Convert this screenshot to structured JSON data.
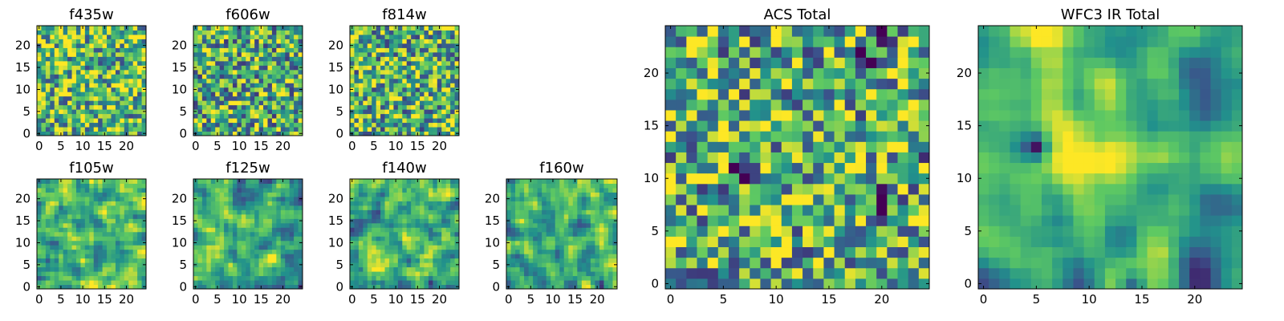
{
  "figure": {
    "colormap": "viridis",
    "colormap_stops": [
      "#440154",
      "#3b528b",
      "#21918c",
      "#5ec962",
      "#fde725"
    ]
  },
  "chart_data": [
    {
      "type": "heatmap",
      "title": "f435w",
      "grid": [
        25,
        25
      ],
      "xlim": [
        0,
        24
      ],
      "ylim": [
        0,
        24
      ],
      "xticks": [
        0,
        5,
        10,
        15,
        20
      ],
      "yticks": [
        0,
        5,
        10,
        15,
        20
      ],
      "seed": 11,
      "smooth": 0,
      "mean": 0.68,
      "blobs": []
    },
    {
      "type": "heatmap",
      "title": "f606w",
      "grid": [
        25,
        25
      ],
      "xlim": [
        0,
        24
      ],
      "ylim": [
        0,
        24
      ],
      "xticks": [
        0,
        5,
        10,
        15,
        20
      ],
      "yticks": [
        0,
        5,
        10,
        15,
        20
      ],
      "seed": 23,
      "smooth": 0,
      "mean": 0.62,
      "blobs": []
    },
    {
      "type": "heatmap",
      "title": "f814w",
      "grid": [
        25,
        25
      ],
      "xlim": [
        0,
        24
      ],
      "ylim": [
        0,
        24
      ],
      "xticks": [
        0,
        5,
        10,
        15,
        20
      ],
      "yticks": [
        0,
        5,
        10,
        15,
        20
      ],
      "seed": 37,
      "smooth": 0,
      "mean": 0.64,
      "blobs": []
    },
    {
      "type": "heatmap",
      "title": "f105w",
      "grid": [
        25,
        25
      ],
      "xlim": [
        0,
        24
      ],
      "ylim": [
        0,
        24
      ],
      "xticks": [
        0,
        5,
        10,
        15,
        20
      ],
      "yticks": [
        0,
        5,
        10,
        15,
        20
      ],
      "seed": 41,
      "smooth": 1,
      "mean": 0.72,
      "blobs": [
        [
          22,
          16,
          0.3
        ],
        [
          4,
          10,
          0.35
        ]
      ]
    },
    {
      "type": "heatmap",
      "title": "f125w",
      "grid": [
        25,
        25
      ],
      "xlim": [
        0,
        24
      ],
      "ylim": [
        0,
        24
      ],
      "xticks": [
        0,
        5,
        10,
        15,
        20
      ],
      "yticks": [
        0,
        5,
        10,
        15,
        20
      ],
      "seed": 53,
      "smooth": 1,
      "mean": 0.58,
      "blobs": []
    },
    {
      "type": "heatmap",
      "title": "f140w",
      "grid": [
        25,
        25
      ],
      "xlim": [
        0,
        24
      ],
      "ylim": [
        0,
        24
      ],
      "xticks": [
        0,
        5,
        10,
        15,
        20
      ],
      "yticks": [
        0,
        5,
        10,
        15,
        20
      ],
      "seed": 67,
      "smooth": 1,
      "mean": 0.62,
      "blobs": []
    },
    {
      "type": "heatmap",
      "title": "f160w",
      "grid": [
        25,
        25
      ],
      "xlim": [
        0,
        24
      ],
      "ylim": [
        0,
        24
      ],
      "xticks": [
        0,
        5,
        10,
        15,
        20
      ],
      "yticks": [
        0,
        5,
        10,
        15,
        20
      ],
      "seed": 79,
      "smooth": 1,
      "mean": 0.6,
      "blobs": []
    },
    {
      "type": "heatmap",
      "title": "ACS Total",
      "grid": [
        25,
        25
      ],
      "xlim": [
        0,
        24
      ],
      "ylim": [
        0,
        24
      ],
      "xticks": [
        0,
        5,
        10,
        15,
        20
      ],
      "yticks": [
        0,
        5,
        10,
        15,
        20
      ],
      "seed": 97,
      "smooth": 0,
      "mean": 0.62,
      "blobs": [
        [
          20,
          8,
          0.6
        ],
        [
          18,
          21,
          0.6
        ],
        [
          7,
          11,
          0.5
        ],
        [
          24,
          13,
          0.5
        ],
        [
          20,
          24,
          0.5
        ]
      ]
    },
    {
      "type": "heatmap",
      "title": "WFC3 IR Total",
      "grid": [
        25,
        25
      ],
      "xlim": [
        0,
        24
      ],
      "ylim": [
        0,
        24
      ],
      "xticks": [
        0,
        5,
        10,
        15,
        20
      ],
      "yticks": [
        0,
        5,
        10,
        15,
        20
      ],
      "seed": 131,
      "smooth": 2,
      "mean": 0.58,
      "blobs": [
        [
          12,
          12,
          -0.45
        ],
        [
          5,
          13,
          0.55
        ],
        [
          14,
          0,
          0.55
        ],
        [
          9,
          20,
          -0.2
        ]
      ]
    }
  ]
}
